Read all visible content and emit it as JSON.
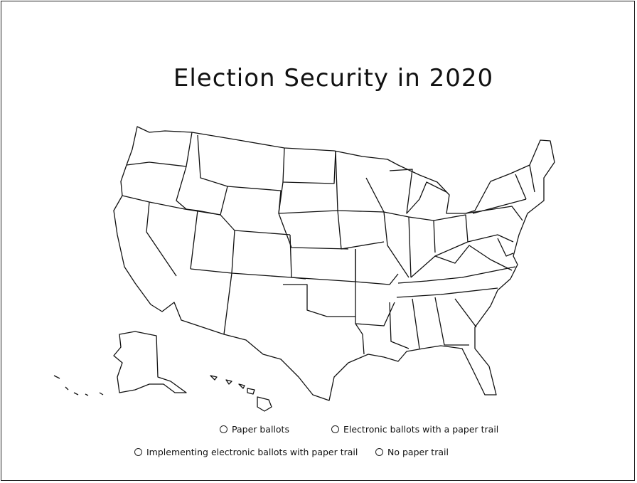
{
  "title": "Election Security in 2020",
  "map": {
    "region": "United States",
    "fill_color": "#ffffff",
    "stroke_color": "#111111"
  },
  "legend": [
    {
      "label": "Paper ballots"
    },
    {
      "label": "Electronic ballots with a paper trail"
    },
    {
      "label": "Implementing electronic ballots with paper trail"
    },
    {
      "label": "No paper trail"
    }
  ]
}
